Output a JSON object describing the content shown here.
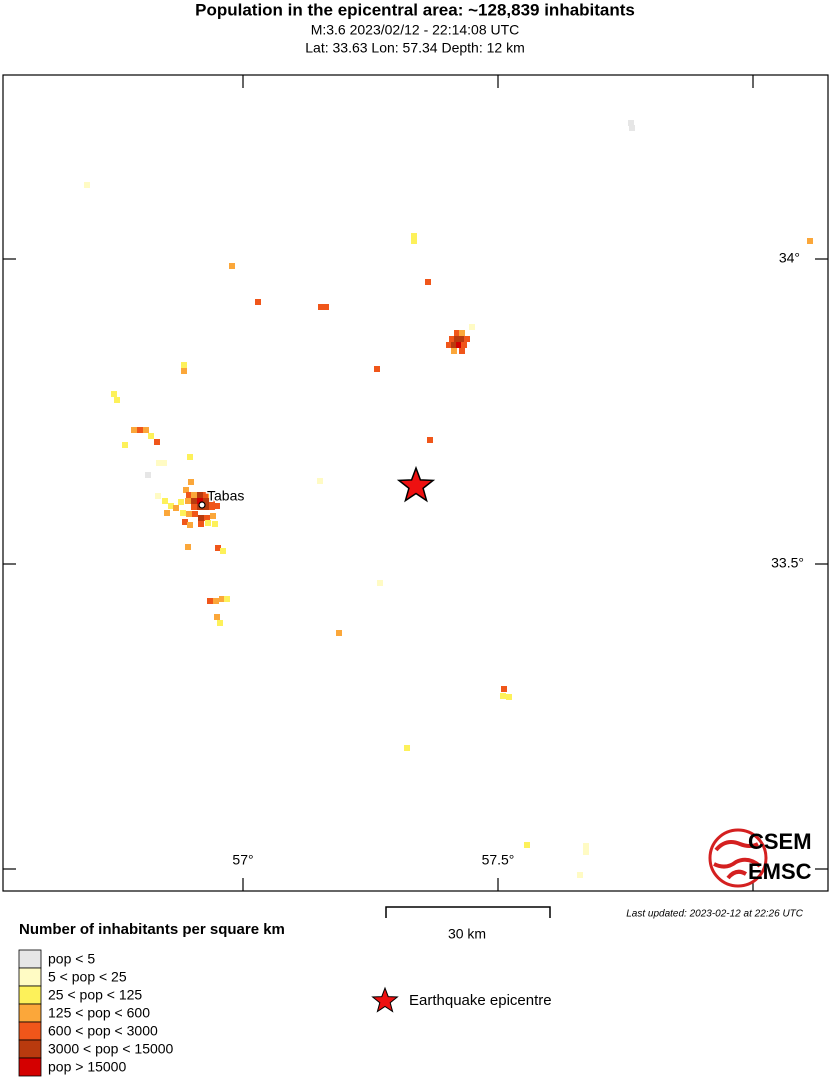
{
  "header": {
    "title": "Population in the epicentral area: ~128,839 inhabitants",
    "subtitle": "M:3.6 2023/02/12 - 22:14:08 UTC",
    "location": "Lat: 33.63 Lon: 57.34 Depth: 12 km"
  },
  "map": {
    "lat_labels": [
      "34°",
      "33.5°"
    ],
    "lon_labels": [
      "57°",
      "57.5°"
    ],
    "place": "Tabas",
    "scale_label": "30 km",
    "last_updated": "Last updated: 2023-02-12 at 22:26 UTC",
    "logo": [
      "CSEM",
      "EMSC"
    ]
  },
  "legend": {
    "title": "Number of inhabitants per square km",
    "items": [
      {
        "label": "pop < 5",
        "color": "#e6e6e6"
      },
      {
        "label": "5 < pop < 25",
        "color": "#fffbc4"
      },
      {
        "label": "25 < pop < 125",
        "color": "#fdf15a"
      },
      {
        "label": "125 < pop < 600",
        "color": "#fba73a"
      },
      {
        "label": "600 < pop < 3000",
        "color": "#f0561a"
      },
      {
        "label": "3000 < pop < 15000",
        "color": "#b93a0e"
      },
      {
        "label": "pop > 15000",
        "color": "#d40000"
      }
    ],
    "epicentre": "Earthquake epicentre"
  }
}
